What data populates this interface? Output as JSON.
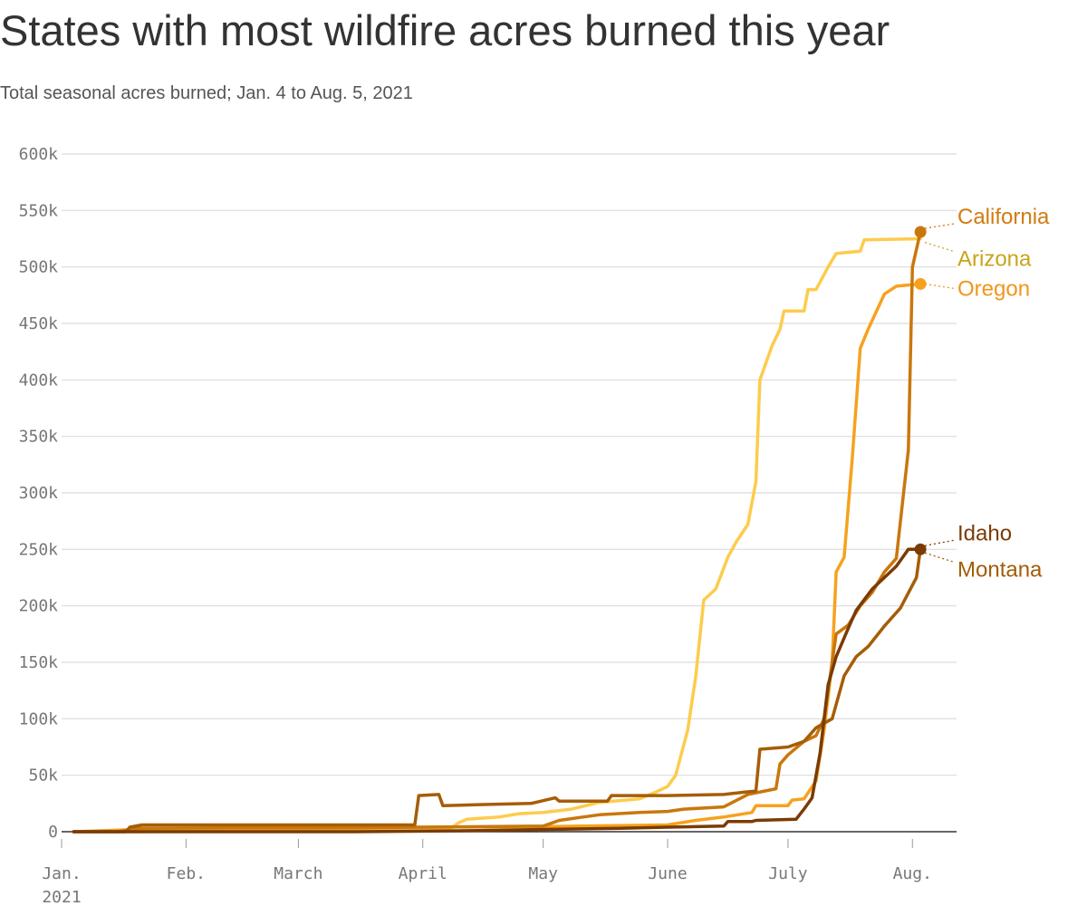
{
  "chart_data": {
    "type": "line",
    "title": "States with most wildfire acres burned this year",
    "subtitle": "Total seasonal acres burned; Jan. 4 to Aug. 5, 2021",
    "xlabel": "",
    "ylabel": "",
    "x_range": [
      "2021-01-01",
      "2021-08-12"
    ],
    "ylim": [
      0,
      600000
    ],
    "grid": true,
    "legend": "direct labels at line ends",
    "y_ticks": [
      {
        "value": 0,
        "label": "0"
      },
      {
        "value": 50000,
        "label": "50k"
      },
      {
        "value": 100000,
        "label": "100k"
      },
      {
        "value": 150000,
        "label": "150k"
      },
      {
        "value": 200000,
        "label": "200k"
      },
      {
        "value": 250000,
        "label": "250k"
      },
      {
        "value": 300000,
        "label": "300k"
      },
      {
        "value": 350000,
        "label": "350k"
      },
      {
        "value": 400000,
        "label": "400k"
      },
      {
        "value": 450000,
        "label": "450k"
      },
      {
        "value": 500000,
        "label": "500k"
      },
      {
        "value": 550000,
        "label": "550k"
      },
      {
        "value": 600000,
        "label": "600k"
      }
    ],
    "x_ticks": [
      {
        "date": "2021-01-01",
        "label": "Jan.",
        "label2": "2021"
      },
      {
        "date": "2021-02-01",
        "label": "Feb."
      },
      {
        "date": "2021-03-01",
        "label": "March"
      },
      {
        "date": "2021-04-01",
        "label": "April"
      },
      {
        "date": "2021-05-01",
        "label": "May"
      },
      {
        "date": "2021-06-01",
        "label": "June"
      },
      {
        "date": "2021-07-01",
        "label": "July"
      },
      {
        "date": "2021-08-01",
        "label": "Aug."
      }
    ],
    "series": [
      {
        "name": "Arizona",
        "color": "#fdcc4c",
        "label_color": "#c9a41a",
        "end_marker": false,
        "points": [
          [
            "2021-01-04",
            0
          ],
          [
            "2021-01-20",
            0
          ],
          [
            "2021-02-15",
            1000
          ],
          [
            "2021-03-15",
            1500
          ],
          [
            "2021-04-01",
            2500
          ],
          [
            "2021-04-08",
            3000
          ],
          [
            "2021-04-10",
            8000
          ],
          [
            "2021-04-12",
            11000
          ],
          [
            "2021-04-20",
            13000
          ],
          [
            "2021-04-25",
            16000
          ],
          [
            "2021-05-01",
            17000
          ],
          [
            "2021-05-08",
            20000
          ],
          [
            "2021-05-15",
            26000
          ],
          [
            "2021-05-25",
            29000
          ],
          [
            "2021-05-29",
            35000
          ],
          [
            "2021-06-01",
            40000
          ],
          [
            "2021-06-03",
            50000
          ],
          [
            "2021-06-06",
            90000
          ],
          [
            "2021-06-08",
            137000
          ],
          [
            "2021-06-10",
            205000
          ],
          [
            "2021-06-13",
            215000
          ],
          [
            "2021-06-16",
            243000
          ],
          [
            "2021-06-18",
            256000
          ],
          [
            "2021-06-21",
            272000
          ],
          [
            "2021-06-23",
            310000
          ],
          [
            "2021-06-24",
            400000
          ],
          [
            "2021-06-27",
            430000
          ],
          [
            "2021-06-29",
            445000
          ],
          [
            "2021-06-30",
            461000
          ],
          [
            "2021-07-05",
            461000
          ],
          [
            "2021-07-06",
            480000
          ],
          [
            "2021-07-08",
            480000
          ],
          [
            "2021-07-11",
            500000
          ],
          [
            "2021-07-13",
            512000
          ],
          [
            "2021-07-19",
            514000
          ],
          [
            "2021-07-20",
            524000
          ],
          [
            "2021-08-03",
            525000
          ]
        ]
      },
      {
        "name": "Oregon",
        "color": "#f6a21e",
        "label_color": "#f0961b",
        "end_marker": true,
        "points": [
          [
            "2021-01-04",
            0
          ],
          [
            "2021-01-20",
            2000
          ],
          [
            "2021-02-15",
            2500
          ],
          [
            "2021-03-15",
            3000
          ],
          [
            "2021-04-01",
            4000
          ],
          [
            "2021-05-01",
            4500
          ],
          [
            "2021-06-01",
            6000
          ],
          [
            "2021-06-08",
            10000
          ],
          [
            "2021-06-15",
            13000
          ],
          [
            "2021-06-22",
            17000
          ],
          [
            "2021-06-23",
            23000
          ],
          [
            "2021-07-01",
            23000
          ],
          [
            "2021-07-02",
            28000
          ],
          [
            "2021-07-05",
            29000
          ],
          [
            "2021-07-08",
            45000
          ],
          [
            "2021-07-10",
            90000
          ],
          [
            "2021-07-12",
            150000
          ],
          [
            "2021-07-13",
            230000
          ],
          [
            "2021-07-15",
            243000
          ],
          [
            "2021-07-17",
            330000
          ],
          [
            "2021-07-19",
            428000
          ],
          [
            "2021-07-21",
            445000
          ],
          [
            "2021-07-25",
            476000
          ],
          [
            "2021-07-28",
            483000
          ],
          [
            "2021-08-03",
            485000
          ]
        ]
      },
      {
        "name": "California",
        "color": "#c9770c",
        "label_color": "#d27a10",
        "end_marker": true,
        "points": [
          [
            "2021-01-04",
            0
          ],
          [
            "2021-01-15",
            0
          ],
          [
            "2021-01-20",
            3000
          ],
          [
            "2021-02-15",
            3500
          ],
          [
            "2021-03-15",
            3500
          ],
          [
            "2021-04-01",
            4000
          ],
          [
            "2021-05-01",
            5000
          ],
          [
            "2021-05-05",
            10000
          ],
          [
            "2021-05-15",
            15000
          ],
          [
            "2021-05-25",
            17000
          ],
          [
            "2021-06-01",
            18000
          ],
          [
            "2021-06-05",
            20000
          ],
          [
            "2021-06-15",
            22000
          ],
          [
            "2021-06-21",
            33000
          ],
          [
            "2021-06-28",
            38000
          ],
          [
            "2021-06-29",
            60000
          ],
          [
            "2021-07-01",
            68000
          ],
          [
            "2021-07-05",
            80000
          ],
          [
            "2021-07-08",
            85000
          ],
          [
            "2021-07-10",
            100000
          ],
          [
            "2021-07-13",
            175000
          ],
          [
            "2021-07-16",
            183000
          ],
          [
            "2021-07-19",
            200000
          ],
          [
            "2021-07-22",
            212000
          ],
          [
            "2021-07-25",
            230000
          ],
          [
            "2021-07-28",
            242000
          ],
          [
            "2021-07-31",
            338000
          ],
          [
            "2021-08-01",
            500000
          ],
          [
            "2021-08-03",
            531000
          ]
        ]
      },
      {
        "name": "Montana",
        "color": "#a65d08",
        "label_color": "#a25d08",
        "end_marker": false,
        "points": [
          [
            "2021-01-04",
            0
          ],
          [
            "2021-01-17",
            0
          ],
          [
            "2021-01-18",
            4000
          ],
          [
            "2021-01-21",
            6000
          ],
          [
            "2021-03-30",
            6000
          ],
          [
            "2021-03-31",
            32000
          ],
          [
            "2021-04-05",
            33000
          ],
          [
            "2021-04-06",
            23000
          ],
          [
            "2021-04-15",
            24000
          ],
          [
            "2021-04-28",
            25000
          ],
          [
            "2021-05-04",
            30000
          ],
          [
            "2021-05-05",
            27000
          ],
          [
            "2021-05-17",
            27000
          ],
          [
            "2021-05-18",
            32000
          ],
          [
            "2021-06-01",
            32000
          ],
          [
            "2021-06-15",
            33000
          ],
          [
            "2021-06-20",
            35000
          ],
          [
            "2021-06-23",
            36000
          ],
          [
            "2021-06-24",
            73000
          ],
          [
            "2021-07-01",
            75000
          ],
          [
            "2021-07-05",
            80000
          ],
          [
            "2021-07-08",
            92000
          ],
          [
            "2021-07-12",
            100000
          ],
          [
            "2021-07-15",
            138000
          ],
          [
            "2021-07-18",
            155000
          ],
          [
            "2021-07-21",
            164000
          ],
          [
            "2021-07-25",
            182000
          ],
          [
            "2021-07-29",
            198000
          ],
          [
            "2021-08-02",
            225000
          ],
          [
            "2021-08-03",
            250000
          ]
        ]
      },
      {
        "name": "Idaho",
        "color": "#7a3b05",
        "label_color": "#7a3b05",
        "end_marker": true,
        "points": [
          [
            "2021-01-04",
            0
          ],
          [
            "2021-03-15",
            0
          ],
          [
            "2021-04-15",
            1000
          ],
          [
            "2021-05-01",
            2000
          ],
          [
            "2021-05-20",
            3000
          ],
          [
            "2021-06-01",
            4000
          ],
          [
            "2021-06-15",
            5000
          ],
          [
            "2021-06-16",
            9000
          ],
          [
            "2021-06-22",
            9000
          ],
          [
            "2021-06-23",
            10000
          ],
          [
            "2021-07-03",
            11000
          ],
          [
            "2021-07-05",
            20000
          ],
          [
            "2021-07-07",
            30000
          ],
          [
            "2021-07-09",
            70000
          ],
          [
            "2021-07-11",
            130000
          ],
          [
            "2021-07-13",
            155000
          ],
          [
            "2021-07-16",
            180000
          ],
          [
            "2021-07-18",
            196000
          ],
          [
            "2021-07-22",
            215000
          ],
          [
            "2021-07-25",
            225000
          ],
          [
            "2021-07-28",
            235000
          ],
          [
            "2021-07-31",
            250000
          ],
          [
            "2021-08-03",
            250000
          ]
        ]
      }
    ]
  }
}
